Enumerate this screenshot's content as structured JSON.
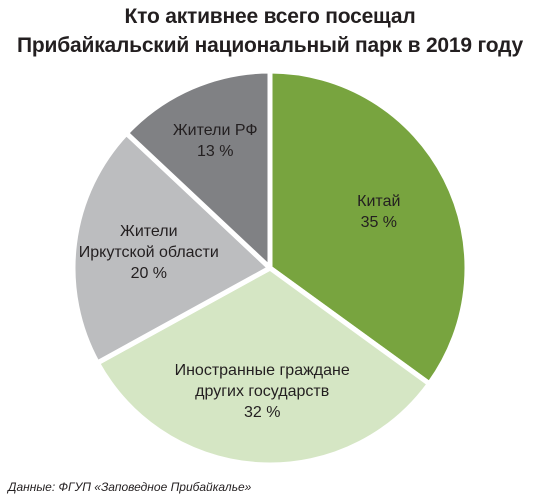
{
  "title": {
    "line1": "Кто активнее всего посещал",
    "line2": "Прибайкальский национальный парк в 2019 году"
  },
  "source": "Данные: ФГУП «Заповедное Прибайкалье»",
  "chart_data": {
    "type": "pie",
    "title": "Кто активнее всего посещал Прибайкальский национальный парк в 2019 году",
    "slices": [
      {
        "name": "Китай",
        "label_lines": [
          "Китай"
        ],
        "value": 35,
        "value_label": "35 %",
        "color": "#78a43f"
      },
      {
        "name": "Иностранные граждане других государств",
        "label_lines": [
          "Иностранные граждане",
          "других государств"
        ],
        "value": 32,
        "value_label": "32 %",
        "color": "#d5e6c4"
      },
      {
        "name": "Жители Иркутской области",
        "label_lines": [
          "Жители",
          "Иркутской области"
        ],
        "value": 20,
        "value_label": "20 %",
        "color": "#bcbdbf"
      },
      {
        "name": "Жители РФ",
        "label_lines": [
          "Жители РФ"
        ],
        "value": 13,
        "value_label": "13 %",
        "color": "#808184"
      }
    ],
    "start_angle_deg": 0,
    "direction": "clockwise",
    "slice_border_color": "#ffffff",
    "legend": "none"
  }
}
